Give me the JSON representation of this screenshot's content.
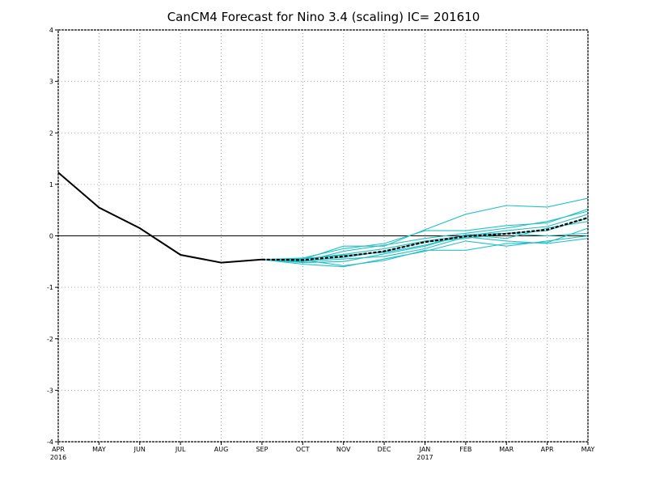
{
  "chart_data": {
    "type": "line",
    "title": "CanCM4 Forecast for Nino 3.4 (scaling)  IC= 201610",
    "xlabel": "",
    "ylabel": "",
    "ylim": [
      -4,
      4
    ],
    "yticks": [
      "4",
      "3",
      "2",
      "1",
      "0",
      "-1",
      "-2",
      "-3",
      "-4"
    ],
    "x_month_labels": [
      "APR",
      "MAY",
      "JUN",
      "JUL",
      "AUG",
      "SEP",
      "OCT",
      "NOV",
      "DEC",
      "JAN",
      "FEB",
      "MAR",
      "APR",
      "MAY"
    ],
    "x_year_labels": [
      {
        "month_index": 0,
        "text": "2016"
      },
      {
        "month_index": 9,
        "text": "2017"
      }
    ],
    "grid": true,
    "grid_style": "dotted",
    "zero_line": true,
    "colors": {
      "observed": "#000000",
      "members": "#22c1c7",
      "ensemble_mean": "#000000",
      "grid": "#aaaaaa"
    },
    "observed": {
      "x": [
        "APR 2016",
        "MAY 2016",
        "JUN 2016",
        "JUL 2016",
        "AUG 2016",
        "SEP 2016"
      ],
      "values": [
        1.23,
        0.55,
        0.15,
        -0.37,
        -0.52,
        -0.46
      ]
    },
    "members": {
      "x": [
        "SEP 2016",
        "OCT 2016",
        "NOV 2016",
        "DEC 2016",
        "JAN 2017",
        "FEB 2017",
        "MAR 2017",
        "APR 2017",
        "MAY 2017"
      ],
      "series": [
        {
          "values": [
            -0.46,
            -0.46,
            -0.2,
            -0.2,
            0.12,
            0.42,
            0.59,
            0.56,
            0.73
          ]
        },
        {
          "values": [
            -0.46,
            -0.43,
            -0.25,
            -0.15,
            0.1,
            0.1,
            0.2,
            0.25,
            0.52
          ]
        },
        {
          "values": [
            -0.46,
            -0.5,
            -0.3,
            -0.18,
            -0.05,
            0.05,
            0.15,
            0.28,
            0.48
          ]
        },
        {
          "values": [
            -0.46,
            -0.45,
            -0.36,
            -0.25,
            -0.1,
            0.0,
            0.1,
            0.18,
            0.42
          ]
        },
        {
          "values": [
            -0.46,
            -0.48,
            -0.42,
            -0.3,
            -0.12,
            -0.05,
            0.05,
            0.1,
            0.35
          ]
        },
        {
          "values": [
            -0.46,
            -0.52,
            -0.5,
            -0.35,
            -0.2,
            0.02,
            -0.05,
            0.15,
            0.28
          ]
        },
        {
          "values": [
            -0.46,
            -0.47,
            -0.58,
            -0.48,
            -0.28,
            -0.28,
            -0.15,
            -0.13,
            0.15
          ]
        },
        {
          "values": [
            -0.46,
            -0.55,
            -0.6,
            -0.45,
            -0.3,
            -0.1,
            -0.2,
            -0.1,
            0.0
          ]
        },
        {
          "values": [
            -0.46,
            -0.5,
            -0.45,
            -0.4,
            -0.25,
            -0.02,
            -0.1,
            -0.15,
            -0.05
          ]
        },
        {
          "values": [
            -0.46,
            -0.44,
            -0.38,
            -0.32,
            -0.18,
            0.02,
            0.05,
            0.0,
            0.05
          ]
        }
      ]
    },
    "ensemble_mean": {
      "x": [
        "SEP 2016",
        "OCT 2016",
        "NOV 2016",
        "DEC 2016",
        "JAN 2017",
        "FEB 2017",
        "MAR 2017",
        "APR 2017",
        "MAY 2017"
      ],
      "values": [
        -0.46,
        -0.47,
        -0.4,
        -0.3,
        -0.12,
        -0.01,
        0.04,
        0.12,
        0.35
      ]
    }
  }
}
